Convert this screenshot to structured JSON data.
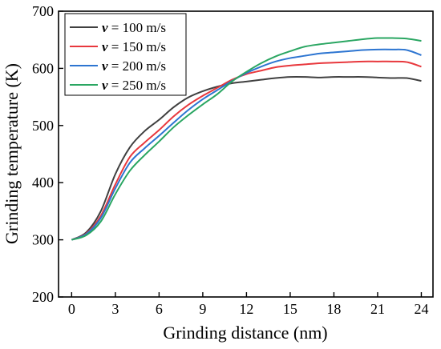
{
  "chart_data": {
    "type": "line",
    "xlabel": "Grinding distance (nm)",
    "ylabel": "Grinding temperature (K)",
    "xlim": [
      -0.9,
      24.8
    ],
    "ylim": [
      200,
      700
    ],
    "xticks": [
      0,
      3,
      6,
      9,
      12,
      15,
      18,
      21,
      24
    ],
    "yticks": [
      200,
      300,
      400,
      500,
      600,
      700
    ],
    "x_tick_labels": [
      "0",
      "3",
      "6",
      "9",
      "12",
      "15",
      "18",
      "21",
      "24"
    ],
    "y_tick_labels": [
      "200",
      "300",
      "400",
      "500",
      "600",
      "700"
    ],
    "legend_position": "top-left",
    "grid": false,
    "x": [
      0,
      1,
      2,
      3,
      4,
      5,
      6,
      7,
      8,
      9,
      10,
      11,
      12,
      13,
      14,
      15,
      16,
      17,
      18,
      19,
      20,
      21,
      22,
      23,
      24
    ],
    "series": [
      {
        "name_symbol": "v",
        "name_rest": " = 100 m/s",
        "color": "#404040",
        "values": [
          300,
          313,
          350,
          415,
          462,
          490,
          510,
          532,
          549,
          560,
          568,
          574,
          577,
          580,
          583,
          585,
          585,
          584,
          585,
          585,
          585,
          584,
          583,
          583,
          578
        ]
      },
      {
        "name_symbol": "v",
        "name_rest": " = 150 m/s",
        "color": "#e8383d",
        "values": [
          300,
          311,
          342,
          397,
          445,
          470,
          492,
          516,
          536,
          552,
          566,
          580,
          590,
          596,
          602,
          605,
          607,
          609,
          610,
          611,
          612,
          612,
          612,
          611,
          603
        ]
      },
      {
        "name_symbol": "v",
        "name_rest": " = 200 m/s",
        "color": "#2d75d1",
        "values": [
          300,
          310,
          338,
          390,
          435,
          460,
          482,
          505,
          527,
          546,
          562,
          578,
          592,
          603,
          612,
          618,
          622,
          626,
          628,
          630,
          632,
          633,
          633,
          632,
          623
        ]
      },
      {
        "name_symbol": "v",
        "name_rest": " = 250 m/s",
        "color": "#2aa662",
        "values": [
          300,
          308,
          332,
          380,
          421,
          448,
          472,
          497,
          518,
          537,
          555,
          577,
          594,
          609,
          621,
          630,
          638,
          642,
          645,
          648,
          651,
          653,
          653,
          652,
          648
        ]
      }
    ]
  }
}
